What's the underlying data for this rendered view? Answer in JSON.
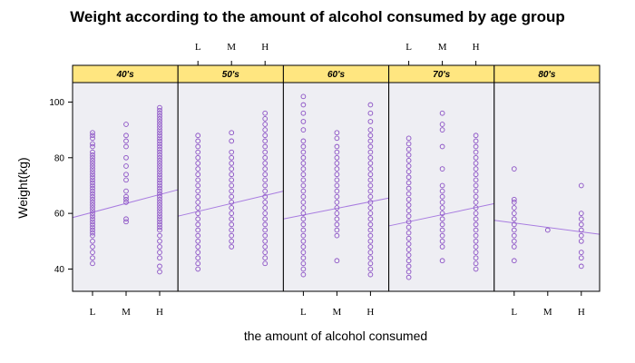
{
  "chart_data": {
    "type": "scatter",
    "title": "Weight according to the amount of alcohol consumed by age group",
    "xlabel": "the amount of alcohol consumed",
    "ylabel": "Weight(kg)",
    "categories": [
      "L",
      "M",
      "H"
    ],
    "ylim": [
      32,
      107
    ],
    "yticks": [
      40,
      60,
      80,
      100
    ],
    "grid": false,
    "colors": {
      "points": "#8a4fc4",
      "line": "#a87ce0",
      "strip": "#ffe680",
      "panel": "#eeeef3"
    },
    "panels": [
      {
        "label": "40's",
        "points": {
          "L": [
            42,
            44,
            46,
            48,
            50,
            52,
            53,
            54,
            55,
            56,
            57,
            58,
            59,
            60,
            61,
            62,
            63,
            64,
            65,
            66,
            67,
            68,
            69,
            70,
            71,
            72,
            73,
            74,
            75,
            76,
            77,
            78,
            79,
            80,
            81,
            82,
            84,
            85,
            87,
            88,
            89
          ],
          "M": [
            57,
            58,
            64,
            65,
            66,
            68,
            72,
            74,
            77,
            80,
            84,
            86,
            88,
            92
          ],
          "H": [
            39,
            41,
            44,
            46,
            48,
            50,
            52,
            54,
            55,
            56,
            57,
            58,
            59,
            60,
            61,
            62,
            63,
            64,
            65,
            66,
            67,
            68,
            69,
            70,
            71,
            72,
            73,
            74,
            75,
            76,
            77,
            78,
            79,
            80,
            81,
            82,
            83,
            84,
            85,
            86,
            87,
            88,
            89,
            90,
            91,
            92,
            93,
            94,
            95,
            96,
            97,
            98
          ]
        },
        "trend": [
          58.5,
          68.5
        ]
      },
      {
        "label": "50's",
        "points": {
          "L": [
            40,
            42,
            44,
            46,
            48,
            50,
            52,
            54,
            56,
            58,
            60,
            62,
            64,
            66,
            68,
            70,
            72,
            74,
            76,
            78,
            80,
            82,
            84,
            86,
            88
          ],
          "M": [
            48,
            50,
            52,
            54,
            56,
            58,
            60,
            62,
            64,
            66,
            68,
            70,
            72,
            74,
            76,
            78,
            80,
            82,
            86,
            89
          ],
          "H": [
            42,
            44,
            46,
            48,
            50,
            52,
            54,
            56,
            58,
            60,
            62,
            64,
            66,
            68,
            70,
            72,
            74,
            76,
            78,
            80,
            82,
            84,
            86,
            88,
            90,
            92,
            94,
            96
          ]
        },
        "trend": [
          59,
          68
        ]
      },
      {
        "label": "60's",
        "points": {
          "L": [
            38,
            40,
            42,
            44,
            46,
            48,
            50,
            52,
            54,
            56,
            58,
            60,
            62,
            64,
            66,
            68,
            70,
            72,
            74,
            76,
            78,
            80,
            82,
            84,
            86,
            90,
            93,
            96,
            99,
            102
          ],
          "M": [
            43,
            52,
            54,
            56,
            58,
            60,
            62,
            64,
            66,
            68,
            70,
            72,
            74,
            76,
            78,
            80,
            82,
            84,
            87,
            89
          ],
          "H": [
            38,
            40,
            42,
            44,
            46,
            48,
            50,
            52,
            54,
            56,
            58,
            60,
            62,
            64,
            66,
            68,
            70,
            72,
            74,
            76,
            78,
            80,
            82,
            84,
            86,
            88,
            90,
            93,
            96,
            99
          ]
        },
        "trend": [
          58,
          65.5
        ]
      },
      {
        "label": "70's",
        "points": {
          "L": [
            37,
            39,
            41,
            43,
            45,
            47,
            49,
            51,
            53,
            55,
            57,
            59,
            61,
            63,
            65,
            67,
            69,
            71,
            73,
            75,
            77,
            79,
            81,
            83,
            85,
            87
          ],
          "M": [
            43,
            48,
            50,
            52,
            54,
            56,
            58,
            60,
            62,
            64,
            66,
            68,
            70,
            76,
            84,
            90,
            92,
            96
          ],
          "H": [
            40,
            42,
            44,
            46,
            48,
            50,
            52,
            54,
            56,
            58,
            60,
            62,
            64,
            66,
            68,
            70,
            72,
            74,
            76,
            78,
            80,
            82,
            84,
            86,
            88
          ]
        },
        "trend": [
          55.5,
          63.5
        ]
      },
      {
        "label": "80's",
        "points": {
          "L": [
            43,
            48,
            50,
            52,
            54,
            56,
            58,
            60,
            62,
            64,
            65,
            76
          ],
          "M": [
            54
          ],
          "H": [
            41,
            44,
            46,
            50,
            52,
            54,
            56,
            58,
            60,
            70
          ]
        },
        "trend": [
          57.5,
          52.5
        ]
      }
    ]
  }
}
